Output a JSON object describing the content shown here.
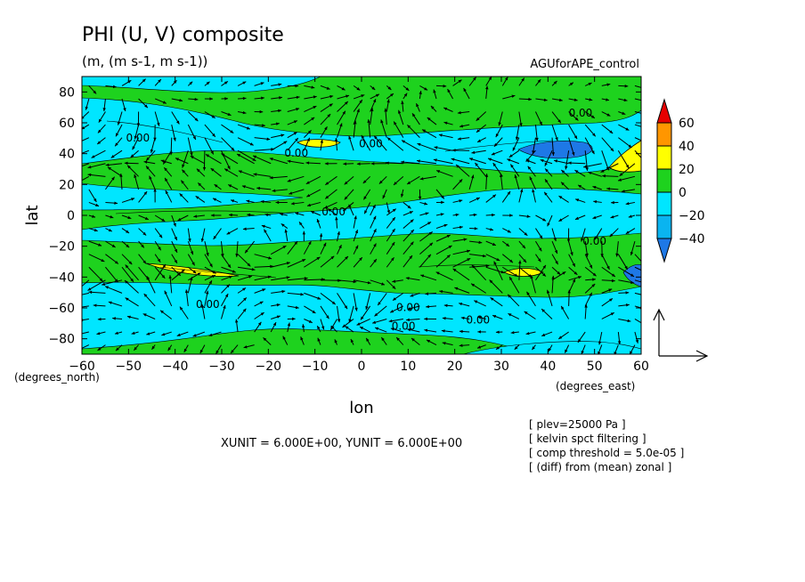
{
  "header": {
    "title": "PHI (U, V) composite",
    "units": "(m, (m s-1, m s-1))",
    "experiment": "AGUforAPE_control"
  },
  "notes": {
    "unit_line": "XUNIT = 6.000E+00, YUNIT = 6.000E+00",
    "info": [
      "[ plev=25000 Pa ]",
      "[ kelvin spct filtering ]",
      "[ comp threshold = 5.0e-05 ]",
      "[ (diff) from (mean) zonal ]"
    ]
  },
  "chart_data": {
    "type": "heatmap",
    "title": "PHI (U, V) composite",
    "subtitle": "(m, (m s-1, m s-1))",
    "xlabel": "lon",
    "ylabel": "lat",
    "x_unit_label": "(degrees_east)",
    "y_unit_label": "(degrees_north)",
    "xlim": [
      -60,
      60
    ],
    "ylim": [
      -90,
      90
    ],
    "x_ticks": [
      -60,
      -50,
      -40,
      -30,
      -20,
      -10,
      0,
      10,
      20,
      30,
      40,
      50,
      60
    ],
    "y_ticks": [
      -80,
      -60,
      -40,
      -20,
      0,
      20,
      40,
      60,
      80
    ],
    "colorbar": {
      "levels": [
        -40,
        -20,
        0,
        20,
        40,
        60
      ],
      "colors": [
        "#1e78e6",
        "#0ab4f0",
        "#00e6ff",
        "#1ed21e",
        "#ffff00",
        "#ff9600",
        "#e60000"
      ]
    },
    "contour_labels": [
      {
        "lon": 47,
        "lat": 64,
        "text": "0.00"
      },
      {
        "lon": -48,
        "lat": 48,
        "text": "0.00"
      },
      {
        "lon": -14,
        "lat": 38,
        "text": "0.00"
      },
      {
        "lon": 2,
        "lat": 44,
        "text": "0.00"
      },
      {
        "lon": -6,
        "lat": 0,
        "text": "0.00"
      },
      {
        "lon": 50,
        "lat": -19,
        "text": "0.00"
      },
      {
        "lon": -33,
        "lat": -60,
        "text": "0.00"
      },
      {
        "lon": 10,
        "lat": -62,
        "text": "0.00"
      },
      {
        "lon": 9,
        "lat": -74,
        "text": "0.00"
      },
      {
        "lon": 25,
        "lat": -70,
        "text": "0.00"
      }
    ],
    "vector_field": {
      "u_label": "U",
      "v_label": "V",
      "xunit": 6.0,
      "yunit": 6.0
    }
  }
}
